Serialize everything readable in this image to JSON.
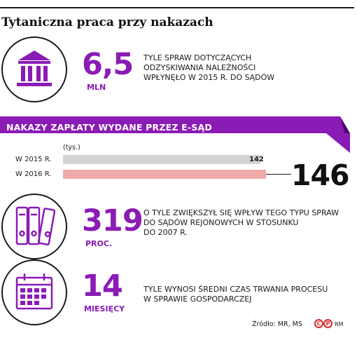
{
  "title": "Tytaniczna praca przy nakazach",
  "stat_cases": {
    "number": "6,5",
    "unit": "MLN",
    "description": [
      "TYLE SPRAW DOTYCZĄCYCH",
      "ODZYSKIWANIA NALEŻNOŚCI",
      "WPŁYNĘŁO W 2015 R. DO SĄDÓW"
    ],
    "icon": "court-building-icon"
  },
  "banner": {
    "text": "NAKAZY ZAPŁATY WYDANE PRZEZ E-SĄD"
  },
  "chart_data": {
    "type": "bar",
    "orientation": "horizontal",
    "unit_label": "(tys.)",
    "categories": [
      "W 2015 R.",
      "W 2016 R."
    ],
    "values": [
      142,
      146
    ],
    "value_labels": [
      "142",
      ""
    ],
    "callout": "146",
    "colors": [
      "#d4d4d4",
      "#efa9a9"
    ],
    "xlim": [
      0,
      146
    ]
  },
  "stat_growth": {
    "number": "319",
    "unit": "PROC.",
    "description": [
      "O TYLE ZWIĘKSZYŁ SIĘ WPŁYW TEGO TYPU SPRAW",
      "DO SĄDÓW REJONOWYCH W STOSUNKU",
      "DO 2007 R."
    ],
    "icon": "binders-icon"
  },
  "stat_duration": {
    "number": "14",
    "unit": "MIESIĘCY",
    "description": [
      "TYLE WYNOSI ŚREDNI CZAS TRWANIA PROCESU",
      "W SPRAWIE GOSPODARCZEJ"
    ],
    "icon": "calendar-icon"
  },
  "footer": {
    "source": "Źródło: MR, MS",
    "initials": "RM",
    "logo_letters": [
      "C",
      "P"
    ]
  },
  "colors": {
    "accent": "#8a1bb5",
    "banner": "#8a1bb5",
    "banner_dark": "#4a0a66",
    "bar_2015": "#d4d4d4",
    "bar_2016": "#efa9a9",
    "logo": "#d42a2a"
  }
}
